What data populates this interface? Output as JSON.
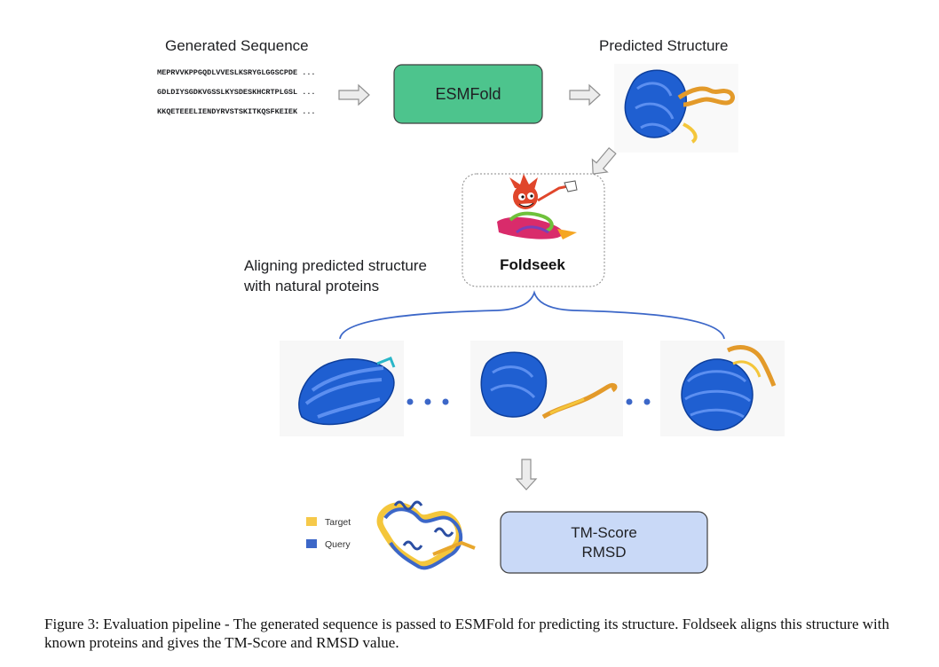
{
  "generated_sequence": {
    "title": "Generated Sequence",
    "lines": [
      "MEPRVVKPPGQDLVVESLKSRYGLGGSCPDE ...",
      "GDLDIYSGDKVGSSLKYSDESKHCRTPLGSL ...",
      "KKQETEEELIENDYRVSTSKITKQSFKEIEK ..."
    ]
  },
  "esmfold": {
    "label": "ESMFold",
    "color": "#4dc48d"
  },
  "predicted_structure": {
    "title": "Predicted Structure"
  },
  "foldseek": {
    "label": "Foldseek"
  },
  "aligning_text": [
    "Aligning predicted structure",
    "with natural proteins"
  ],
  "legend": [
    {
      "label": "Target",
      "color": "#f6c94a"
    },
    {
      "label": "Query",
      "color": "#3c67c8"
    }
  ],
  "metrics": {
    "lines": [
      "TM-Score",
      "RMSD"
    ],
    "color": "#c9d9f7"
  },
  "caption": "Figure 3: Evaluation pipeline - The generated sequence is passed to ESMFold for predicting its structure. Foldseek aligns this structure with known proteins and gives the TM-Score and RMSD value.",
  "colors": {
    "protein_blue": "#1f5fd1",
    "arrow_fill": "#ececec",
    "arrow_stroke": "#9a9a9a",
    "bracket": "#3c67c8"
  }
}
